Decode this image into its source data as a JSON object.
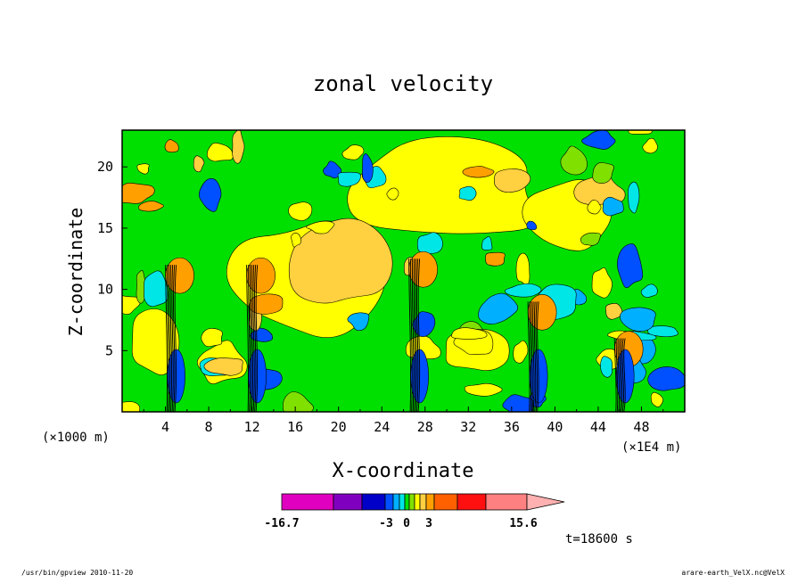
{
  "chart_data": {
    "type": "contour",
    "title": "zonal velocity",
    "xlabel": "X-coordinate",
    "ylabel": "Z-coordinate",
    "x_unit_left": "(×1000 m)",
    "x_unit_right": "(×1E4 m)",
    "xlim": [
      0,
      52
    ],
    "ylim": [
      0,
      23
    ],
    "xticks": [
      4,
      8,
      12,
      16,
      20,
      24,
      28,
      32,
      36,
      40,
      44,
      48
    ],
    "yticks": [
      5,
      10,
      15,
      20
    ],
    "colorbar": {
      "min_label": "-16.7",
      "max_label": "15.6",
      "tick_labels": [
        "-16.7",
        "-3",
        "0",
        "3",
        "15.6"
      ],
      "colors": [
        "#e000c0",
        "#8000c0",
        "#0000c8",
        "#0050ff",
        "#00b0ff",
        "#00e6e6",
        "#00e000",
        "#80e000",
        "#ffff00",
        "#ffd040",
        "#ffa000",
        "#ff6000",
        "#ff1010",
        "#ff8080"
      ],
      "extend": "max"
    },
    "time_label": "t=18600 s",
    "plumes": [
      {
        "x": 4.5,
        "z_top": 12
      },
      {
        "x": 12,
        "z_top": 12
      },
      {
        "x": 27,
        "z_top": 12.5
      },
      {
        "x": 38,
        "z_top": 9
      },
      {
        "x": 46,
        "z_top": 6
      }
    ]
  },
  "footer": {
    "left": "/usr/bin/gpview  2010-11-20",
    "right": "arare-earth_VelX.nc@VelX"
  }
}
